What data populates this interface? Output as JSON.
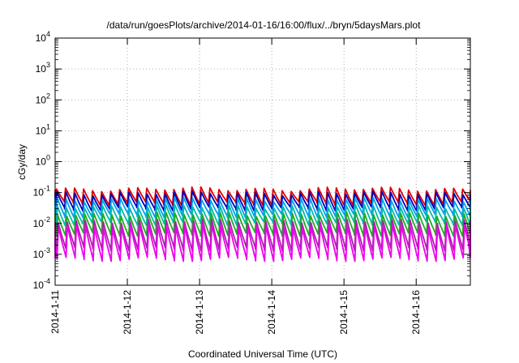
{
  "chart_data": {
    "type": "line",
    "title": "/data/run/goesPlots/archive/2014-01-16/16:00/flux/../bryn/5daysMars.plot",
    "xlabel": "Coordinated Universal Time (UTC)",
    "ylabel": "cGy/day",
    "yscale": "log",
    "ylim": [
      0.0001,
      10000
    ],
    "xlim": [
      0,
      5.75
    ],
    "y_ticks": [
      {
        "value": 0.0001,
        "exp": "-4"
      },
      {
        "value": 0.001,
        "exp": "-3"
      },
      {
        "value": 0.01,
        "exp": "-2"
      },
      {
        "value": 0.1,
        "exp": "-1"
      },
      {
        "value": 1,
        "exp": "0"
      },
      {
        "value": 10,
        "exp": "1"
      },
      {
        "value": 100,
        "exp": "2"
      },
      {
        "value": 1000,
        "exp": "3"
      },
      {
        "value": 10000,
        "exp": "4"
      }
    ],
    "x_ticks": [
      {
        "value": 0,
        "label": "2014-1-11"
      },
      {
        "value": 1,
        "label": "2014-1-12"
      },
      {
        "value": 2,
        "label": "2014-1-13"
      },
      {
        "value": 3,
        "label": "2014-1-14"
      },
      {
        "value": 4,
        "label": "2014-1-15"
      },
      {
        "value": 5,
        "label": "2014-1-16"
      }
    ],
    "grid": true,
    "legend": "none",
    "cycles_per_day": 8,
    "series": [
      {
        "color": "#dd0000",
        "peak": 0.13,
        "trough": 0.045,
        "phase": 0.0
      },
      {
        "color": "#0000bb",
        "peak": 0.095,
        "trough": 0.03,
        "phase": 0.04
      },
      {
        "color": "#00a0ee",
        "peak": 0.06,
        "trough": 0.018,
        "phase": 0.08
      },
      {
        "color": "#00bbaa",
        "peak": 0.035,
        "trough": 0.01,
        "phase": 0.11
      },
      {
        "color": "#22aa22",
        "peak": 0.02,
        "trough": 0.0045,
        "phase": 0.14
      },
      {
        "color": "#aa22aa",
        "peak": 0.012,
        "trough": 0.0015,
        "phase": 0.18
      },
      {
        "color": "#ee00ee",
        "peak": 0.008,
        "trough": 0.0007,
        "phase": 0.21
      }
    ]
  }
}
